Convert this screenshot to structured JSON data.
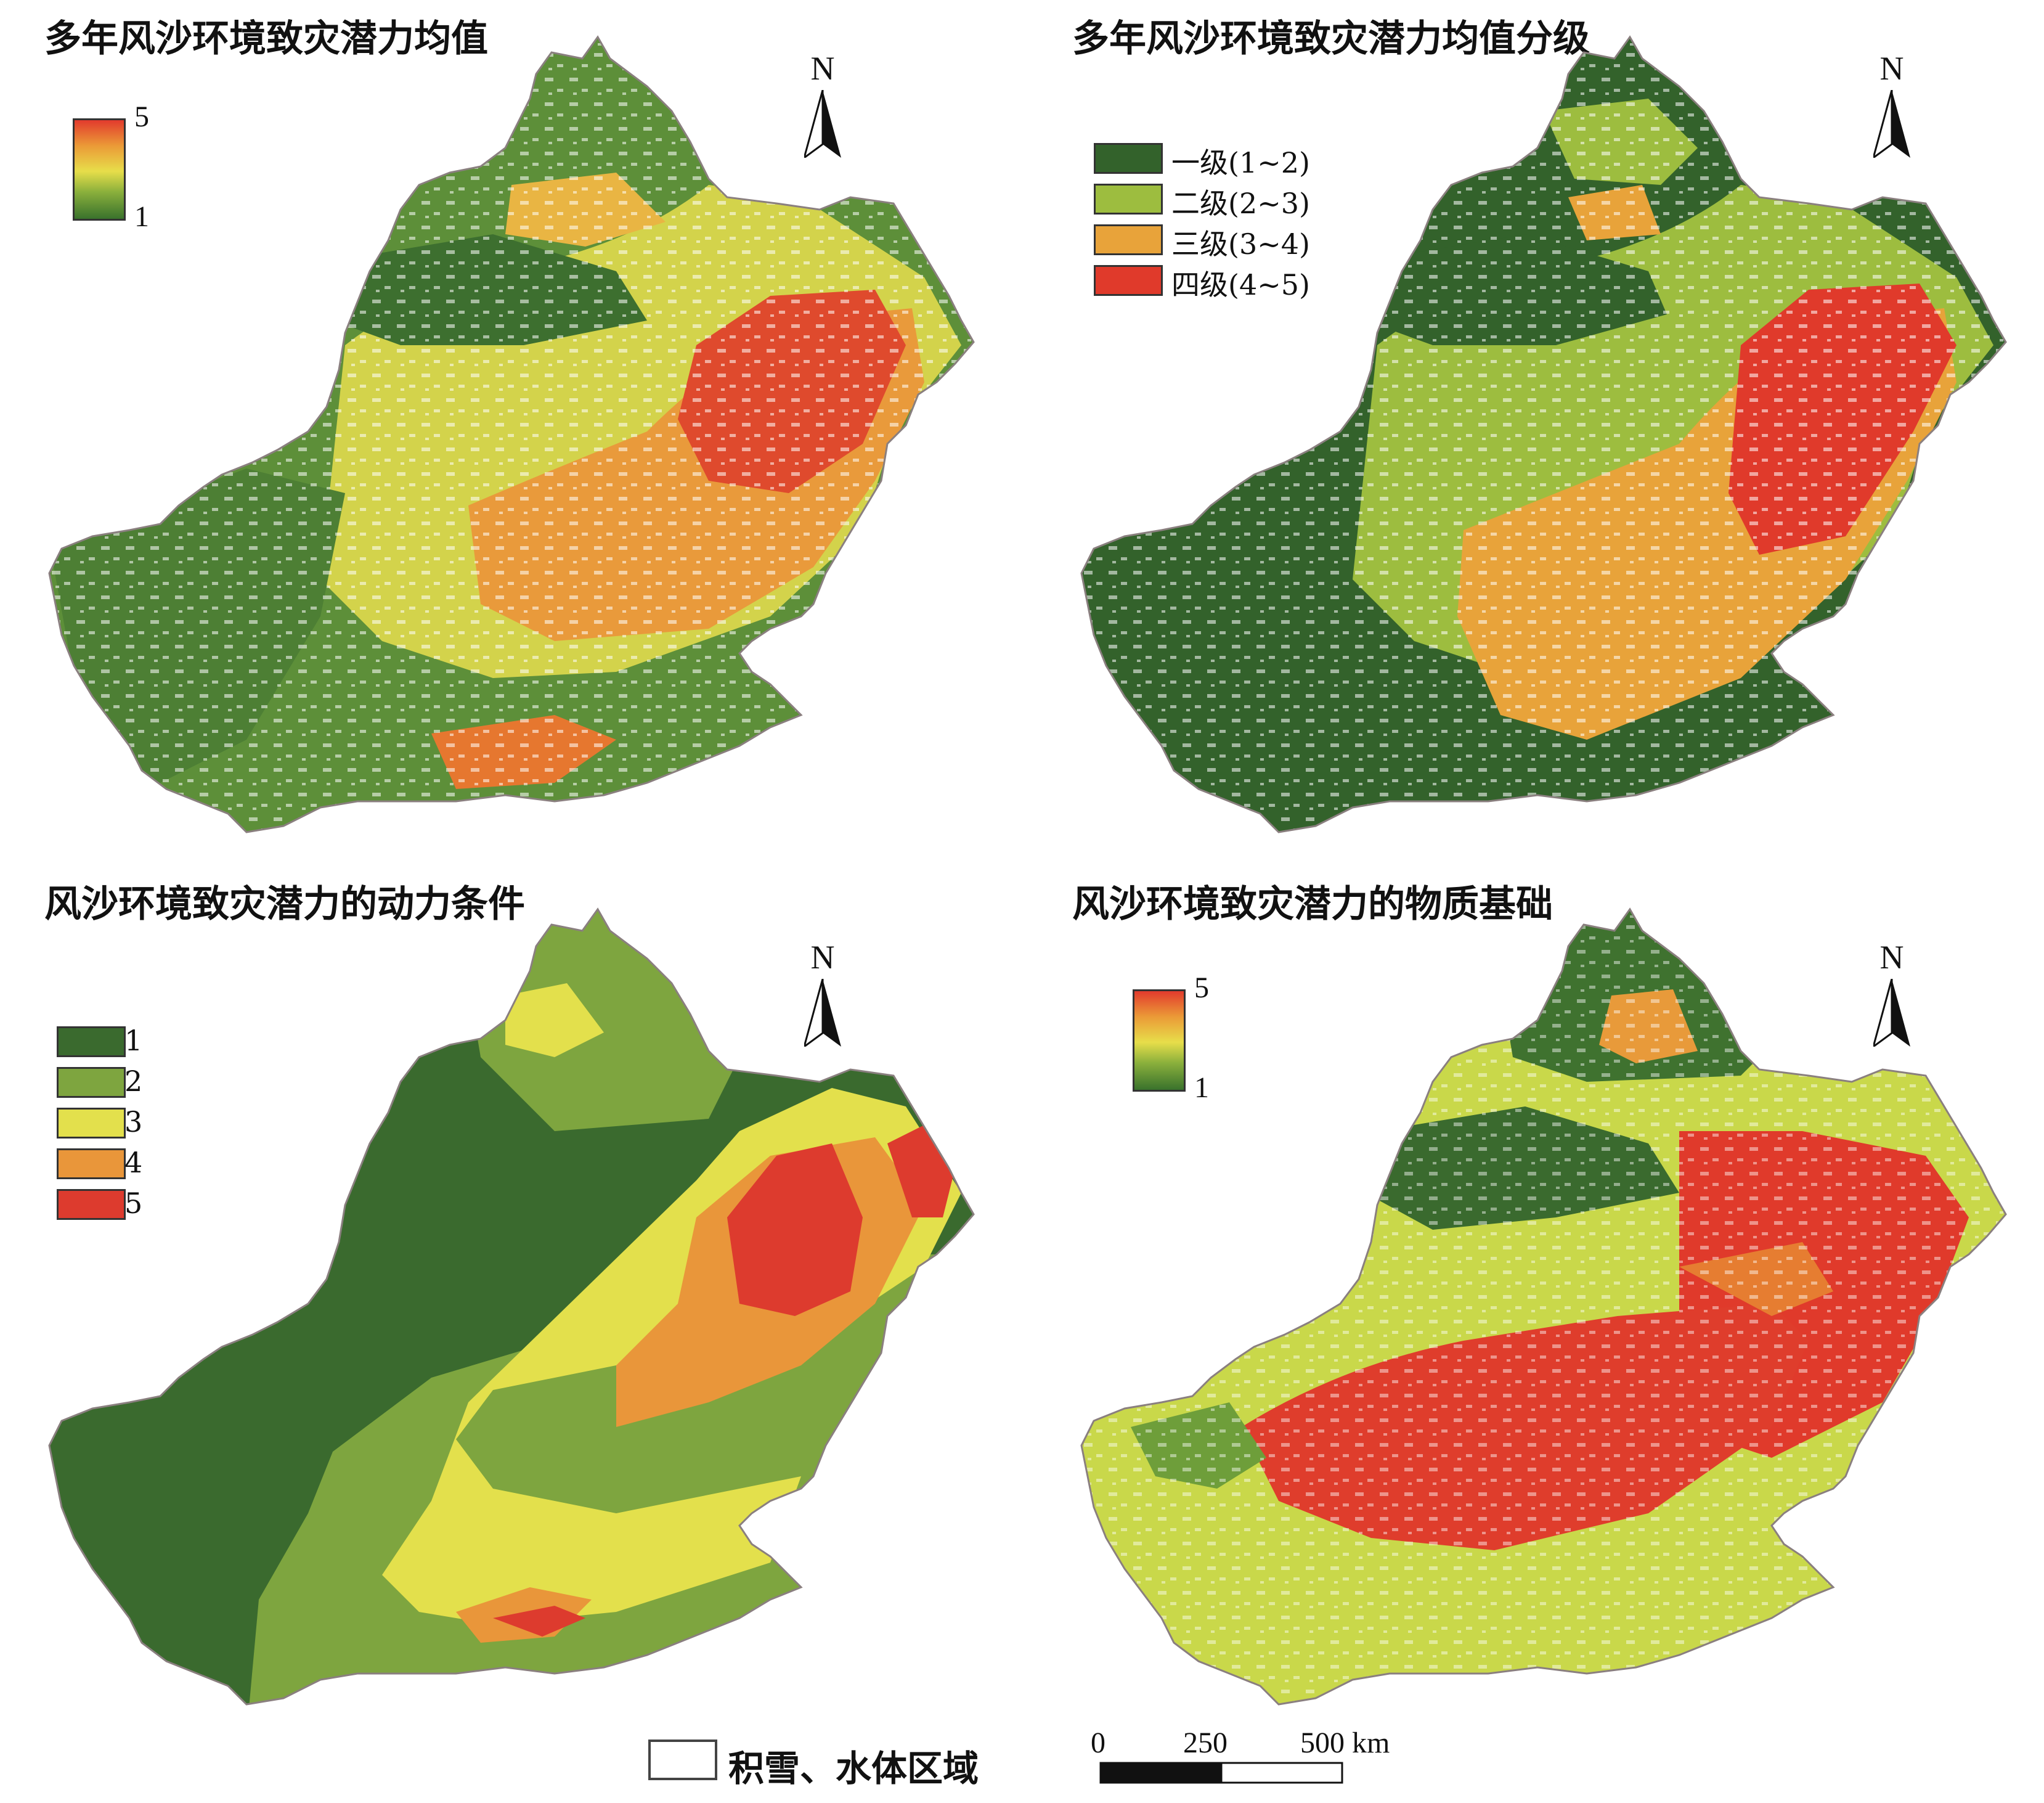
{
  "panels": [
    {
      "title": "多年风沙环境致灾潜力均值",
      "legend_type": "gradient",
      "legend": {
        "max": "5",
        "min": "1"
      },
      "north_label": "N",
      "colors": [
        "#3b7a2f",
        "#7aa63a",
        "#c8d64a",
        "#e9a83c",
        "#e4472f"
      ]
    },
    {
      "title": "多年风沙环境致灾潜力均值分级",
      "legend_type": "classes",
      "legend": {
        "classes": [
          {
            "label": "一级(1~2)",
            "color": "#33622b"
          },
          {
            "label": "二级(2~3)",
            "color": "#9dbd3f"
          },
          {
            "label": "三级(3~4)",
            "color": "#e8a33a"
          },
          {
            "label": "四级(4~5)",
            "color": "#e03a2b"
          }
        ]
      },
      "north_label": "N"
    },
    {
      "title": "风沙环境致灾潜力的动力条件",
      "legend_type": "classes",
      "legend": {
        "classes": [
          {
            "label": "1",
            "color": "#3a6a2e"
          },
          {
            "label": "2",
            "color": "#7ea53f"
          },
          {
            "label": "3",
            "color": "#e3e04c"
          },
          {
            "label": "4",
            "color": "#e9963a"
          },
          {
            "label": "5",
            "color": "#dd3b2e"
          }
        ]
      },
      "north_label": "N"
    },
    {
      "title": "风沙环境致灾潜力的物质基础",
      "legend_type": "gradient",
      "legend": {
        "max": "5",
        "min": "1"
      },
      "north_label": "N"
    }
  ],
  "bottom_legend": {
    "snow_water_label": "积雪、水体区域",
    "snow_water_color": "#ffffff"
  },
  "scale_bar": {
    "ticks": [
      "0",
      "250",
      "500 km"
    ]
  }
}
